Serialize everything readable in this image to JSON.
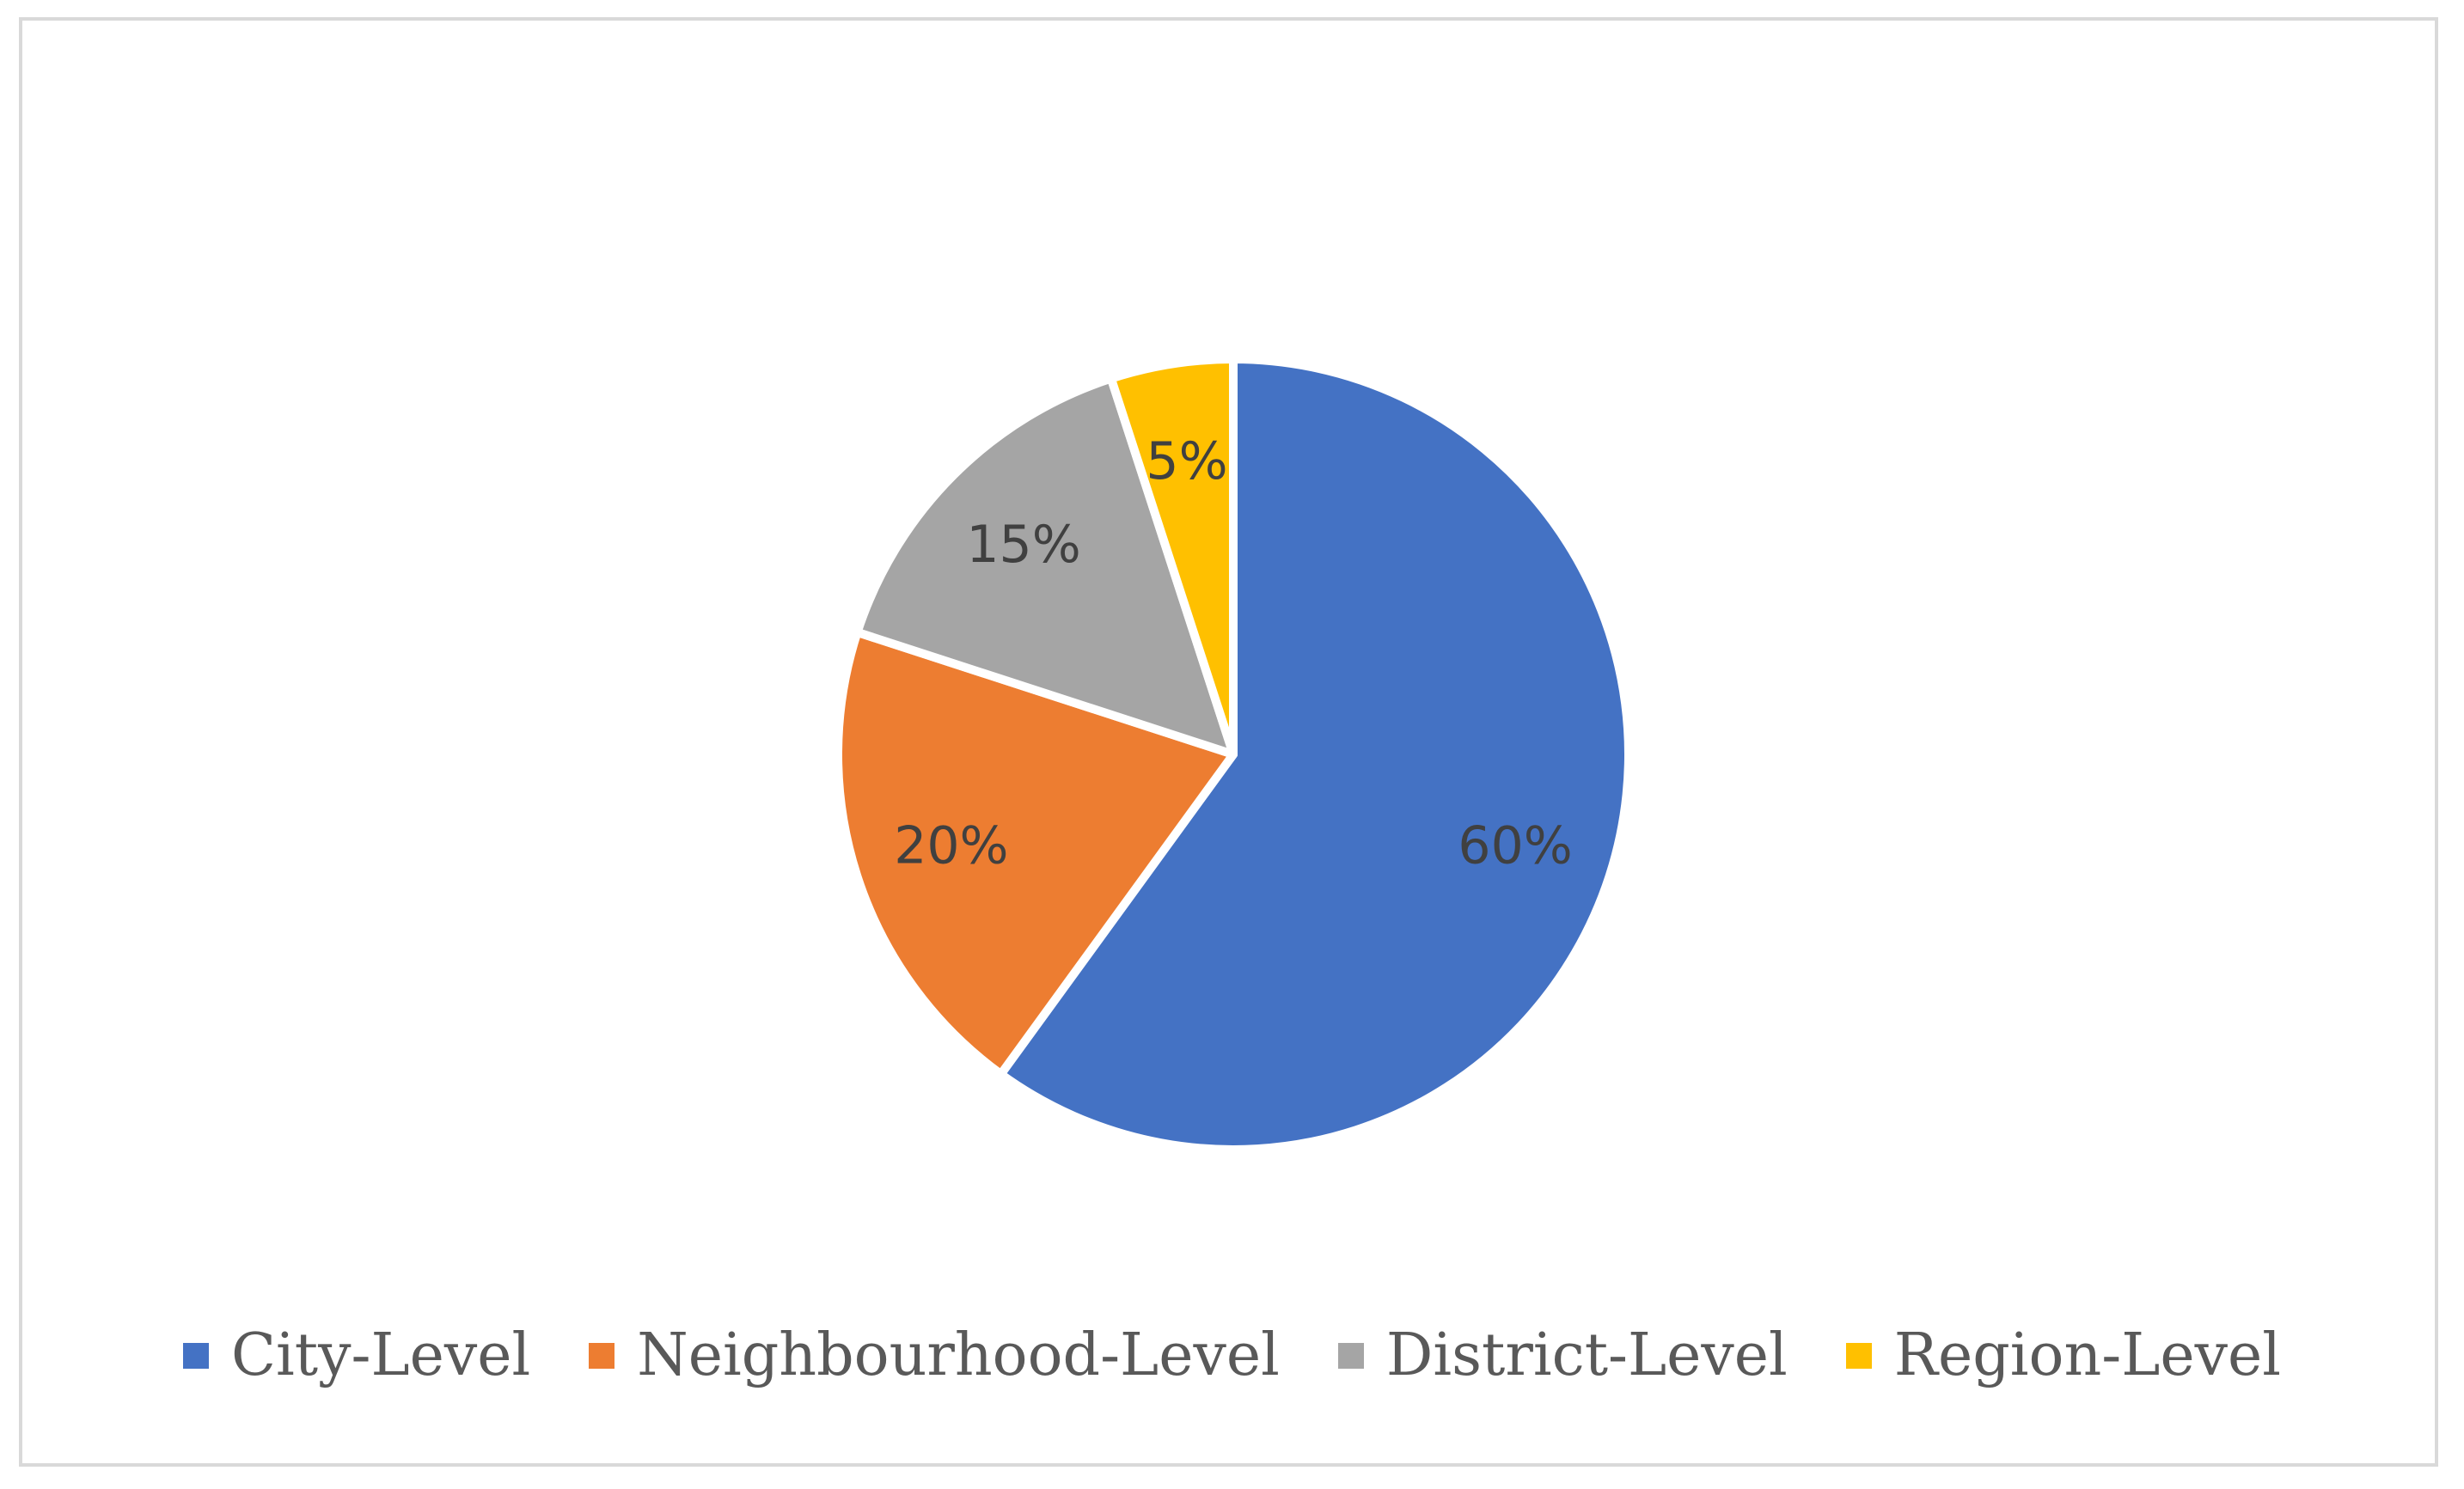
{
  "chart_data": {
    "type": "pie",
    "categories": [
      "City-Level",
      "Neighbourhood-Level",
      "District-Level",
      "Region-Level"
    ],
    "values": [
      60,
      20,
      15,
      5
    ],
    "data_labels": [
      "60%",
      "20%",
      "15%",
      "5%"
    ],
    "colors": [
      "#4472C4",
      "#ED7D31",
      "#A5A5A5",
      "#FFC000"
    ],
    "start_angle_deg": 0,
    "direction": "clockwise",
    "legend_position": "bottom",
    "title": ""
  },
  "legend": {
    "items": [
      {
        "label": "City-Level",
        "color": "#4472C4"
      },
      {
        "label": "Neighbourhood-Level",
        "color": "#ED7D31"
      },
      {
        "label": "District-Level",
        "color": "#A5A5A5"
      },
      {
        "label": "Region-Level",
        "color": "#FFC000"
      }
    ]
  }
}
